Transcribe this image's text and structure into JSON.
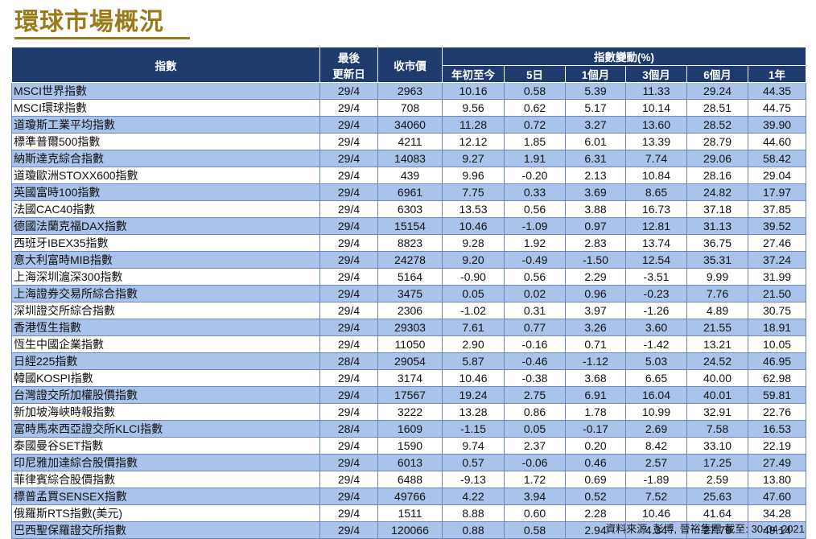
{
  "title": "環球市場概況",
  "headers": {
    "index": "指數",
    "last_update_line1": "最後",
    "last_update_line2": "更新日",
    "close": "收市價",
    "change_group": "指數變動(%)",
    "ytd": "年初至今",
    "d5": "5日",
    "m1": "1個月",
    "m3": "3個月",
    "m6": "6個月",
    "y1": "1年"
  },
  "rows": [
    {
      "name": "MSCI世界指數",
      "date": "29/4",
      "close": "2963",
      "ytd": "10.16",
      "d5": "0.58",
      "m1": "5.39",
      "m3": "11.33",
      "m6": "29.24",
      "y1": "44.35"
    },
    {
      "name": "MSCI環球指數",
      "date": "29/4",
      "close": "708",
      "ytd": "9.56",
      "d5": "0.62",
      "m1": "5.17",
      "m3": "10.14",
      "m6": "28.51",
      "y1": "44.75"
    },
    {
      "name": "道瓊斯工業平均指數",
      "date": "29/4",
      "close": "34060",
      "ytd": "11.28",
      "d5": "0.72",
      "m1": "3.27",
      "m3": "13.60",
      "m6": "28.52",
      "y1": "39.90"
    },
    {
      "name": "標準普爾500指數",
      "date": "29/4",
      "close": "4211",
      "ytd": "12.12",
      "d5": "1.85",
      "m1": "6.01",
      "m3": "13.39",
      "m6": "28.79",
      "y1": "44.60"
    },
    {
      "name": "納斯達克綜合指數",
      "date": "29/4",
      "close": "14083",
      "ytd": "9.27",
      "d5": "1.91",
      "m1": "6.31",
      "m3": "7.74",
      "m6": "29.06",
      "y1": "58.42"
    },
    {
      "name": "道瓊歐洲STOXX600指數",
      "date": "29/4",
      "close": "439",
      "ytd": "9.96",
      "d5": "-0.20",
      "m1": "2.13",
      "m3": "10.84",
      "m6": "28.16",
      "y1": "29.04"
    },
    {
      "name": "英國富時100指數",
      "date": "29/4",
      "close": "6961",
      "ytd": "7.75",
      "d5": "0.33",
      "m1": "3.69",
      "m3": "8.65",
      "m6": "24.82",
      "y1": "17.97"
    },
    {
      "name": "法國CAC40指數",
      "date": "29/4",
      "close": "6303",
      "ytd": "13.53",
      "d5": "0.56",
      "m1": "3.88",
      "m3": "16.73",
      "m6": "37.18",
      "y1": "37.85"
    },
    {
      "name": "德國法蘭克福DAX指數",
      "date": "29/4",
      "close": "15154",
      "ytd": "10.46",
      "d5": "-1.09",
      "m1": "0.97",
      "m3": "12.81",
      "m6": "31.13",
      "y1": "39.52"
    },
    {
      "name": "西班牙IBEX35指數",
      "date": "29/4",
      "close": "8823",
      "ytd": "9.28",
      "d5": "1.92",
      "m1": "2.83",
      "m3": "13.74",
      "m6": "36.75",
      "y1": "27.46"
    },
    {
      "name": "意大利富時MIB指數",
      "date": "29/4",
      "close": "24278",
      "ytd": "9.20",
      "d5": "-0.49",
      "m1": "-1.50",
      "m3": "12.54",
      "m6": "35.31",
      "y1": "37.24"
    },
    {
      "name": "上海深圳滬深300指數",
      "date": "29/4",
      "close": "5164",
      "ytd": "-0.90",
      "d5": "0.56",
      "m1": "2.29",
      "m3": "-3.51",
      "m6": "9.99",
      "y1": "31.99"
    },
    {
      "name": "上海證券交易所綜合指數",
      "date": "29/4",
      "close": "3475",
      "ytd": "0.05",
      "d5": "0.02",
      "m1": "0.96",
      "m3": "-0.23",
      "m6": "7.76",
      "y1": "21.50"
    },
    {
      "name": "深圳證交所綜合指數",
      "date": "29/4",
      "close": "2306",
      "ytd": "-1.02",
      "d5": "0.31",
      "m1": "3.97",
      "m3": "-1.26",
      "m6": "4.89",
      "y1": "30.75"
    },
    {
      "name": "香港恆生指數",
      "date": "29/4",
      "close": "29303",
      "ytd": "7.61",
      "d5": "0.77",
      "m1": "3.26",
      "m3": "3.60",
      "m6": "21.55",
      "y1": "18.91"
    },
    {
      "name": "恆生中國企業指數",
      "date": "29/4",
      "close": "11050",
      "ytd": "2.90",
      "d5": "-0.16",
      "m1": "0.71",
      "m3": "-1.42",
      "m6": "13.21",
      "y1": "10.05"
    },
    {
      "name": "日經225指數",
      "date": "28/4",
      "close": "29054",
      "ytd": "5.87",
      "d5": "-0.46",
      "m1": "-1.12",
      "m3": "5.03",
      "m6": "24.52",
      "y1": "46.95"
    },
    {
      "name": "韓國KOSPI指數",
      "date": "29/4",
      "close": "3174",
      "ytd": "10.46",
      "d5": "-0.38",
      "m1": "3.68",
      "m3": "6.65",
      "m6": "40.00",
      "y1": "62.98"
    },
    {
      "name": "台灣證交所加權股價指數",
      "date": "29/4",
      "close": "17567",
      "ytd": "19.24",
      "d5": "2.75",
      "m1": "6.91",
      "m3": "16.04",
      "m6": "40.01",
      "y1": "59.81"
    },
    {
      "name": "新加坡海峽時報指數",
      "date": "29/4",
      "close": "3222",
      "ytd": "13.28",
      "d5": "0.86",
      "m1": "1.78",
      "m3": "10.99",
      "m6": "32.91",
      "y1": "22.76"
    },
    {
      "name": "富時馬來西亞證交所KLCI指數",
      "date": "28/4",
      "close": "1609",
      "ytd": "-1.15",
      "d5": "0.05",
      "m1": "-0.17",
      "m3": "2.69",
      "m6": "7.58",
      "y1": "16.53"
    },
    {
      "name": "泰國曼谷SET指數",
      "date": "29/4",
      "close": "1590",
      "ytd": "9.74",
      "d5": "2.37",
      "m1": "0.20",
      "m3": "8.42",
      "m6": "33.10",
      "y1": "22.19"
    },
    {
      "name": "印尼雅加達綜合股價指數",
      "date": "29/4",
      "close": "6013",
      "ytd": "0.57",
      "d5": "-0.06",
      "m1": "0.46",
      "m3": "2.57",
      "m6": "17.25",
      "y1": "27.49"
    },
    {
      "name": "菲律賓綜合股價指數",
      "date": "29/4",
      "close": "6488",
      "ytd": "-9.13",
      "d5": "1.72",
      "m1": "0.69",
      "m3": "-1.89",
      "m6": "2.59",
      "y1": "13.80"
    },
    {
      "name": "標普孟買SENSEX指數",
      "date": "29/4",
      "close": "49766",
      "ytd": "4.22",
      "d5": "3.94",
      "m1": "0.52",
      "m3": "7.52",
      "m6": "25.63",
      "y1": "47.60"
    },
    {
      "name": "俄羅斯RTS指數(美元)",
      "date": "29/4",
      "close": "1511",
      "ytd": "8.88",
      "d5": "0.60",
      "m1": "2.28",
      "m3": "10.46",
      "m6": "41.64",
      "y1": "34.28"
    },
    {
      "name": "巴西聖保羅證交所指數",
      "date": "29/4",
      "close": "120066",
      "ytd": "0.88",
      "d5": "0.58",
      "m1": "2.94",
      "m3": "4.34",
      "m6": "27.79",
      "y1": "49.14"
    }
  ],
  "source": "資料來源: 彭博, 晉裕集團 截至: 30-04-2021",
  "colors": {
    "header_bg": "#1f3a6d",
    "row_highlight": "#a9c3ea",
    "title": "#9a7a1a"
  }
}
